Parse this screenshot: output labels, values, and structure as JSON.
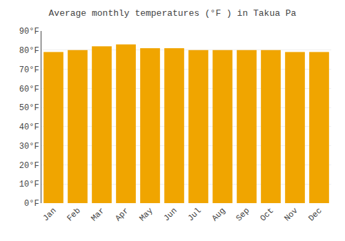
{
  "chart_data": {
    "type": "bar",
    "title": "Average monthly temperatures (°F ) in Takua Pa",
    "categories": [
      "Jan",
      "Feb",
      "Mar",
      "Apr",
      "May",
      "Jun",
      "Jul",
      "Aug",
      "Sep",
      "Oct",
      "Nov",
      "Dec"
    ],
    "values": [
      79,
      80,
      82,
      83,
      81,
      81,
      80,
      80,
      80,
      80,
      79,
      79
    ],
    "color": "#F0A500",
    "ylim": [
      0,
      90
    ],
    "yticks": [
      {
        "value": 0,
        "label": "0°F"
      },
      {
        "value": 10,
        "label": "10°F"
      },
      {
        "value": 20,
        "label": "20°F"
      },
      {
        "value": 30,
        "label": "30°F"
      },
      {
        "value": 40,
        "label": "40°F"
      },
      {
        "value": 50,
        "label": "50°F"
      },
      {
        "value": 60,
        "label": "60°F"
      },
      {
        "value": 70,
        "label": "70°F"
      },
      {
        "value": 80,
        "label": "80°F"
      },
      {
        "value": 90,
        "label": "90°F"
      }
    ],
    "grid": true
  }
}
